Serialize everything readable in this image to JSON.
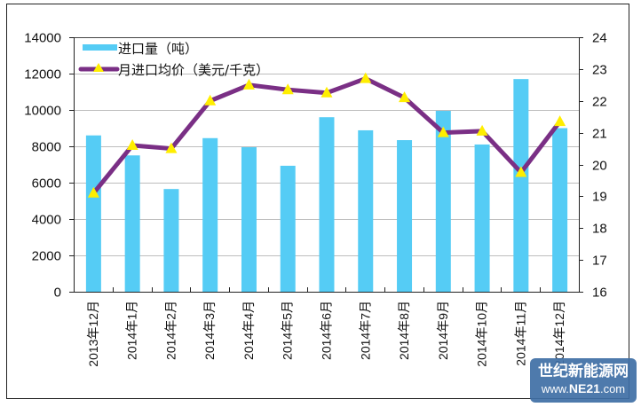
{
  "chart_data": {
    "type": "bar+line",
    "title": "",
    "categories": [
      "2013年12月",
      "2014年1月",
      "2014年2月",
      "2014年3月",
      "2014年4月",
      "2014年5月",
      "2014年6月",
      "2014年7月",
      "2014年8月",
      "2014年9月",
      "2014年10月",
      "2014年11月",
      "2014年12月"
    ],
    "series": [
      {
        "name": "进口量（吨）",
        "type": "bar",
        "axis": "left",
        "color": "#55CCF5",
        "values": [
          8600,
          7500,
          5650,
          8450,
          7950,
          6930,
          9600,
          8880,
          8340,
          9950,
          8100,
          11700,
          9000
        ]
      },
      {
        "name": "月进口均价（美元/千克）",
        "type": "line",
        "axis": "right",
        "color": "#7A2F85",
        "marker_color": "#FFEE00",
        "values": [
          19.1,
          20.6,
          20.5,
          22.0,
          22.5,
          22.35,
          22.25,
          22.7,
          22.1,
          21.0,
          21.05,
          19.75,
          21.35
        ]
      }
    ],
    "left_axis": {
      "range": [
        0,
        14000
      ],
      "ticks": [
        "0",
        "2000",
        "4000",
        "6000",
        "8000",
        "10000",
        "12000",
        "14000"
      ]
    },
    "right_axis": {
      "range": [
        16,
        24
      ],
      "ticks": [
        "16",
        "17",
        "18",
        "19",
        "20",
        "21",
        "22",
        "23",
        "24"
      ]
    },
    "grid": true,
    "legend_position": "top-left"
  },
  "legend": {
    "bar_label": "进口量",
    "bar_unit": "（吨）",
    "line_label": "月进口均价",
    "line_unit": "（美元/千克）"
  },
  "watermark": {
    "name": "世纪新能源网",
    "url_prefix": "www.",
    "url_brand": "NE21",
    "url_suffix": ".com"
  }
}
